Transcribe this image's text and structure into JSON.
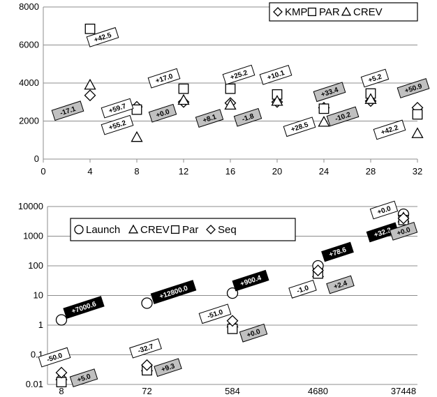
{
  "chart_data": [
    {
      "type": "scatter",
      "title": "",
      "xlabel": "",
      "ylabel": "",
      "xlim": [
        0,
        32
      ],
      "ylim": [
        0,
        8000
      ],
      "x_ticks": [
        "0",
        "4",
        "8",
        "12",
        "16",
        "20",
        "24",
        "28",
        "32"
      ],
      "y_ticks": [
        "0",
        "2000",
        "4000",
        "6000",
        "8000"
      ],
      "grid": "horizontal",
      "legend_position": "top-right",
      "series": [
        {
          "name": "KMP",
          "marker": "diamond",
          "x": [
            4,
            8,
            12,
            16,
            20,
            24,
            28,
            32
          ],
          "y": [
            3350,
            2750,
            3000,
            2950,
            3000,
            2700,
            3050,
            2700
          ]
        },
        {
          "name": "PAR",
          "marker": "square",
          "x": [
            4,
            8,
            12,
            16,
            20,
            24,
            28,
            32
          ],
          "y": [
            6850,
            2600,
            3700,
            3700,
            3400,
            2650,
            3450,
            2350
          ]
        },
        {
          "name": "CREV",
          "marker": "triangle",
          "x": [
            4,
            8,
            12,
            16,
            20,
            24,
            28,
            32
          ],
          "y": [
            3900,
            1150,
            3100,
            2850,
            3050,
            1950,
            3150,
            1350
          ]
        }
      ],
      "annotations": [
        {
          "text": "+42.5",
          "x": 4,
          "y": 6850,
          "style": "white",
          "dx": 18,
          "dy": 12
        },
        {
          "text": "-17.1",
          "x": 4,
          "y": 3350,
          "style": "gray",
          "dx": -32,
          "dy": 22
        },
        {
          "text": "+59.7",
          "x": 8,
          "y": 2600,
          "style": "white",
          "dx": -28,
          "dy": -2
        },
        {
          "text": "+55.2",
          "x": 8,
          "y": 2600,
          "style": "white",
          "dx": -28,
          "dy": 22
        },
        {
          "text": "+17.0",
          "x": 12,
          "y": 3700,
          "style": "white",
          "dx": -28,
          "dy": -15
        },
        {
          "text": "+0.0",
          "x": 12,
          "y": 3000,
          "style": "gray",
          "dx": -30,
          "dy": 16
        },
        {
          "text": "+25.2",
          "x": 16,
          "y": 3700,
          "style": "white",
          "dx": 12,
          "dy": -20
        },
        {
          "text": "+8.1",
          "x": 16,
          "y": 2950,
          "style": "gray",
          "dx": -30,
          "dy": 22
        },
        {
          "text": "+10.1",
          "x": 20,
          "y": 3400,
          "style": "white",
          "dx": -2,
          "dy": -28
        },
        {
          "text": "-1.8",
          "x": 20,
          "y": 3000,
          "style": "gray",
          "dx": -42,
          "dy": 22
        },
        {
          "text": "+33.4",
          "x": 24,
          "y": 2650,
          "style": "gray",
          "dx": 8,
          "dy": -24
        },
        {
          "text": "+28.5",
          "x": 24,
          "y": 2650,
          "style": "white",
          "dx": -35,
          "dy": 26
        },
        {
          "text": "+5.2",
          "x": 28,
          "y": 3450,
          "style": "white",
          "dx": 6,
          "dy": -22
        },
        {
          "text": "-10.2",
          "x": 28,
          "y": 3050,
          "style": "gray",
          "dx": -40,
          "dy": 22
        },
        {
          "text": "+50.9",
          "x": 32,
          "y": 2700,
          "style": "gray",
          "dx": -6,
          "dy": -28
        },
        {
          "text": "+42.2",
          "x": 32,
          "y": 2350,
          "style": "white",
          "dx": -40,
          "dy": 22
        }
      ]
    },
    {
      "type": "scatter",
      "title": "",
      "xlabel": "",
      "ylabel": "",
      "y_scale": "log",
      "ylim": [
        0.01,
        10000
      ],
      "categories": [
        "8",
        "72",
        "584",
        "4680",
        "37448"
      ],
      "y_ticks": [
        "0.01",
        "0.1",
        "1",
        "10",
        "100",
        "1000",
        "10000"
      ],
      "grid": "horizontal",
      "legend_position": "top-left",
      "series": [
        {
          "name": "Launch",
          "marker": "circle",
          "values": [
            1.5,
            5.5,
            12,
            100,
            5500
          ]
        },
        {
          "name": "CREV",
          "marker": "triangle",
          "values": [
            0.02,
            0.04,
            1.2,
            60,
            4200
          ]
        },
        {
          "name": "Par",
          "marker": "square",
          "values": [
            0.012,
            0.03,
            0.75,
            55,
            3500
          ]
        },
        {
          "name": "Seq",
          "marker": "diamond",
          "values": [
            0.025,
            0.045,
            1.4,
            70,
            4000
          ]
        }
      ],
      "annotations": [
        {
          "text": "+7000.6",
          "category": 0,
          "y": 1.5,
          "style": "black",
          "dx": 32,
          "dy": -18
        },
        {
          "text": "-50.0",
          "category": 0,
          "y": 0.025,
          "style": "white",
          "dx": -10,
          "dy": -22
        },
        {
          "text": "+5.0",
          "category": 0,
          "y": 0.012,
          "style": "gray",
          "dx": 32,
          "dy": -6
        },
        {
          "text": "+12800.0",
          "category": 1,
          "y": 5.5,
          "style": "black",
          "dx": 38,
          "dy": -16
        },
        {
          "text": "-32.7",
          "category": 1,
          "y": 0.045,
          "style": "white",
          "dx": -2,
          "dy": -24
        },
        {
          "text": "+9.3",
          "category": 1,
          "y": 0.03,
          "style": "gray",
          "dx": 30,
          "dy": -4
        },
        {
          "text": "+900.4",
          "category": 2,
          "y": 12,
          "style": "black",
          "dx": 26,
          "dy": -18
        },
        {
          "text": "-51.0",
          "category": 2,
          "y": 1.4,
          "style": "white",
          "dx": -25,
          "dy": -10
        },
        {
          "text": "+0.0",
          "category": 2,
          "y": 0.75,
          "style": "gray",
          "dx": 30,
          "dy": 6
        },
        {
          "text": "+78.6",
          "category": 3,
          "y": 100,
          "style": "black",
          "dx": 28,
          "dy": -20
        },
        {
          "text": "-1.0",
          "category": 3,
          "y": 60,
          "style": "white",
          "dx": -22,
          "dy": 24
        },
        {
          "text": "+2.4",
          "category": 3,
          "y": 55,
          "style": "gray",
          "dx": 32,
          "dy": 16
        },
        {
          "text": "+0.0",
          "category": 4,
          "y": 5500,
          "style": "white",
          "dx": -28,
          "dy": -6
        },
        {
          "text": "+32.3",
          "category": 4,
          "y": 4000,
          "style": "black",
          "dx": -30,
          "dy": 20
        },
        {
          "text": "+0.0",
          "category": 4,
          "y": 3500,
          "style": "gray",
          "dx": 0,
          "dy": 16
        }
      ]
    }
  ]
}
